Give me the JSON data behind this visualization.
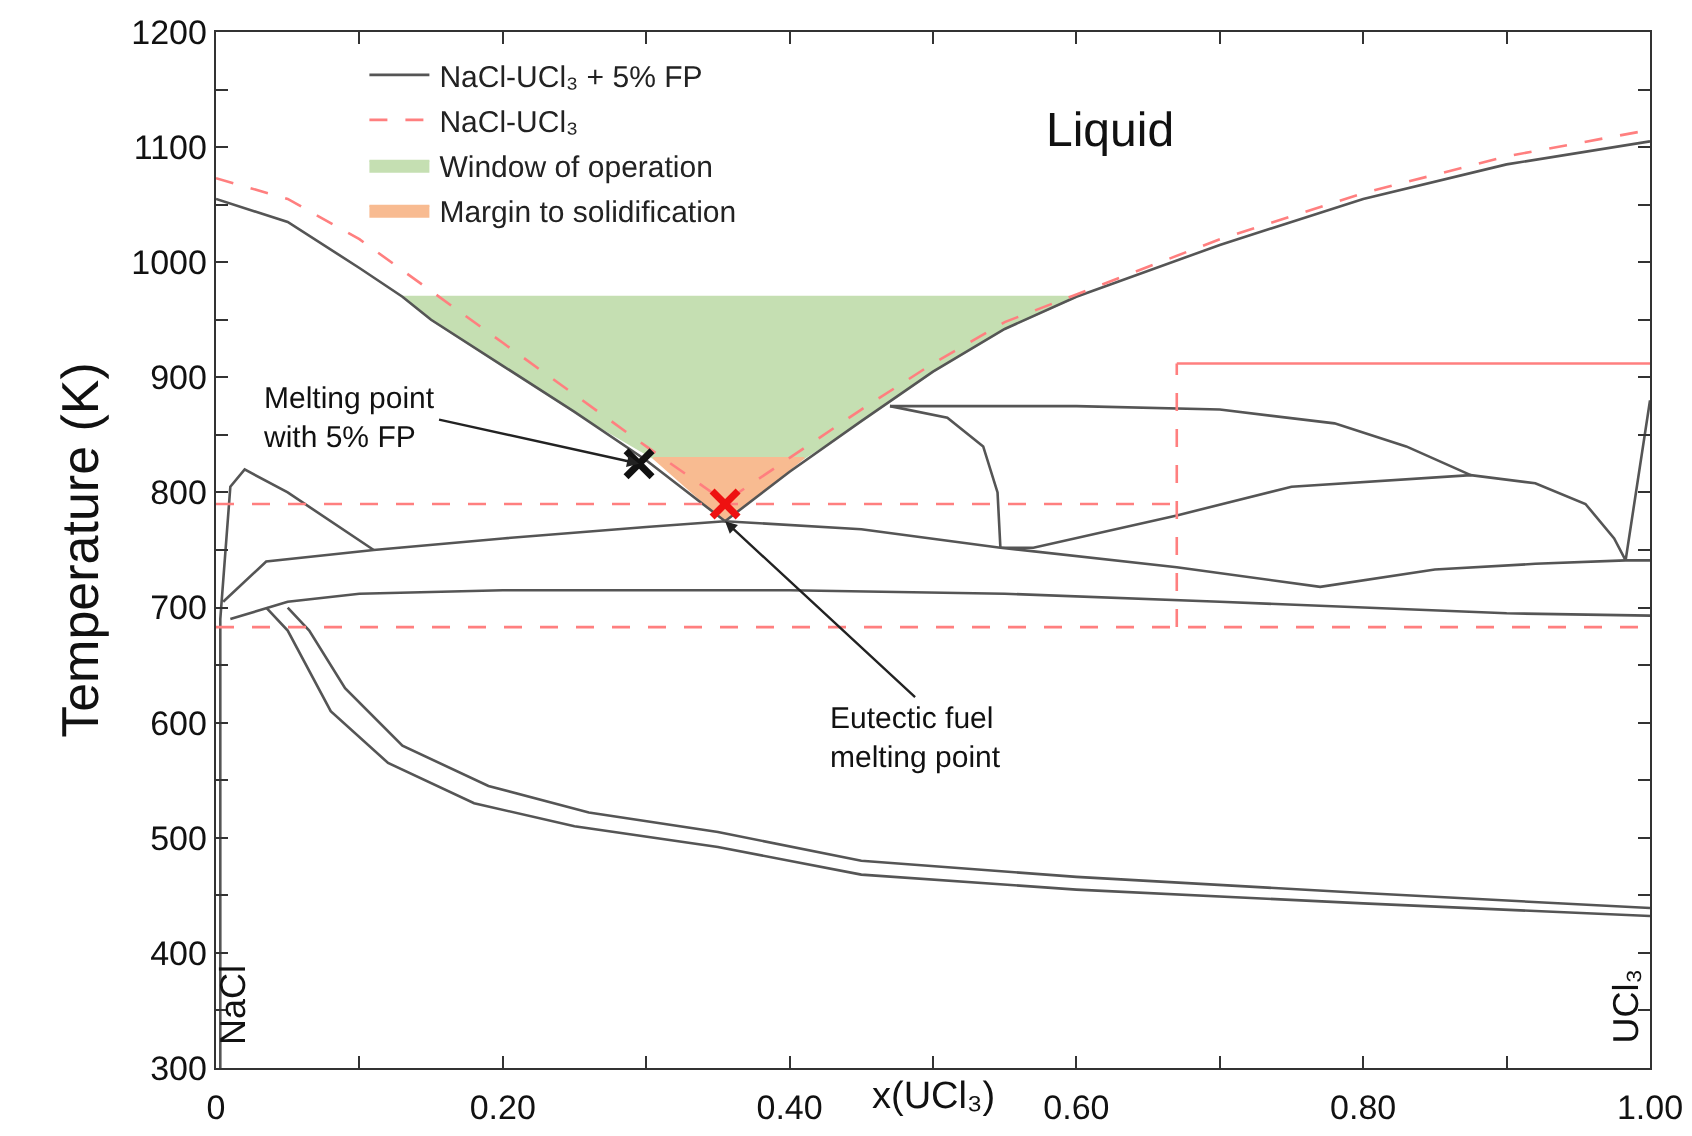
{
  "chart_data": {
    "type": "line",
    "xlabel": "x(UCl₃)",
    "ylabel": "Temperature (K)",
    "xlim": [
      0,
      1
    ],
    "ylim": [
      300,
      1200
    ],
    "xticks": [
      0,
      {
        "value": 0.1,
        "label": null
      },
      {
        "value": 0.2,
        "label": "0.20"
      },
      {
        "value": 0.3,
        "label": null
      },
      {
        "value": 0.4,
        "label": "0.40"
      },
      {
        "value": 0.5,
        "label": null
      },
      {
        "value": 0.6,
        "label": "0.60"
      },
      {
        "value": 0.7,
        "label": null
      },
      {
        "value": 0.8,
        "label": "0.80"
      },
      {
        "value": 0.9,
        "label": null
      },
      {
        "value": 1,
        "label": "1.00"
      }
    ],
    "yticks": [
      300,
      {
        "value": 350,
        "label": null
      },
      400,
      {
        "value": 450,
        "label": null
      },
      500,
      {
        "value": 550,
        "label": null
      },
      600,
      {
        "value": 650,
        "label": null
      },
      700,
      {
        "value": 750,
        "label": null
      },
      800,
      {
        "value": 850,
        "label": null
      },
      900,
      {
        "value": 950,
        "label": null
      },
      1000,
      {
        "value": 1050,
        "label": null
      },
      1100,
      {
        "value": 1150,
        "label": null
      },
      1200
    ],
    "grid": false,
    "legend": "top left",
    "series": [
      {
        "name": "NaCl-UCl₃ + 5% FP",
        "type": "line",
        "color": "#555555",
        "line_style": "solid",
        "x": [
          0,
          0.05,
          0.1,
          0.13,
          0.15,
          0.2,
          0.25,
          0.3,
          0.355,
          0.4,
          0.45,
          0.5,
          0.55,
          0.6,
          0.7,
          0.8,
          0.9,
          1.0,
          null,
          0.47,
          0.6,
          0.7,
          0.78,
          0.83,
          0.875,
          null,
          0.47,
          0.51,
          0.535,
          0.545,
          0.547,
          null,
          0.547,
          0.57,
          0.67,
          0.75,
          0.875,
          0.92,
          0.955,
          0.975,
          0.983,
          1.0,
          null,
          0.003,
          0.003,
          0.01,
          0.02,
          0.05,
          0.11,
          null,
          0.005,
          0.035,
          0.11,
          0.2,
          0.3,
          0.355,
          0.45,
          0.547,
          0.67,
          0.77,
          0.85,
          0.92,
          0.983,
          1.0,
          null,
          0.01,
          0.05,
          0.1,
          0.2,
          0.4,
          0.55,
          0.7,
          0.9,
          1.0,
          null,
          0.035,
          0.05,
          0.08,
          0.12,
          0.18,
          0.25,
          0.35,
          0.45,
          0.6,
          0.8,
          1.0,
          null,
          0.05,
          0.065,
          0.09,
          0.13,
          0.19,
          0.26,
          0.35,
          0.45,
          0.6,
          0.8,
          1.0
        ],
        "values": [
          1055,
          1035,
          995,
          970,
          950,
          910,
          870,
          828,
          775,
          818,
          862,
          905,
          942,
          970,
          1015,
          1055,
          1085,
          1105,
          null,
          875,
          875,
          872,
          860,
          840,
          815,
          null,
          875,
          865,
          840,
          800,
          752,
          null,
          752,
          752,
          780,
          805,
          815,
          808,
          790,
          760,
          741,
          880,
          null,
          300,
          690,
          805,
          820,
          800,
          750,
          null,
          705,
          740,
          750,
          760,
          770,
          775,
          768,
          752,
          735,
          718,
          733,
          738,
          741,
          741,
          null,
          690,
          705,
          712,
          715,
          715,
          712,
          705,
          695,
          693,
          null,
          700,
          680,
          610,
          565,
          530,
          510,
          492,
          468,
          455,
          443,
          432,
          null,
          700,
          680,
          630,
          580,
          545,
          522,
          505,
          480,
          466,
          452,
          439
        ]
      },
      {
        "name": "NaCl-UCl₃",
        "type": "line",
        "color": "#ff7f7f",
        "line_style": "dashed",
        "x": [
          0,
          0.05,
          0.1,
          0.15,
          0.2,
          0.25,
          0.3,
          0.355,
          0.4,
          0.45,
          0.5,
          0.55,
          0.6,
          0.7,
          0.8,
          0.9,
          1.0,
          null,
          0,
          0.67,
          null,
          0,
          1.0,
          null,
          0.67,
          0.67
        ],
        "values": [
          1073,
          1055,
          1020,
          975,
          930,
          885,
          840,
          792,
          830,
          872,
          912,
          948,
          972,
          1020,
          1060,
          1092,
          1115,
          null,
          790,
          790,
          null,
          683,
          683,
          null,
          683,
          912
        ]
      },
      {
        "name": "Window of operation",
        "type": "area",
        "color": "#c5dfb2",
        "x": [
          0.13,
          0.6,
          0.55,
          0.5,
          0.45,
          0.41,
          0.305,
          0.25,
          0.2,
          0.15,
          0.13
        ],
        "values": [
          970,
          970,
          942,
          905,
          862,
          830,
          830,
          870,
          910,
          950,
          970
        ]
      },
      {
        "name": "Margin to solidification",
        "type": "area",
        "color": "#f8bb91",
        "x": [
          0.305,
          0.41,
          0.355,
          0.305
        ],
        "values": [
          830,
          830,
          775,
          830
        ]
      },
      {
        "type": "line",
        "color": "#ff7f7f",
        "line_style": "solid",
        "x": [
          0.67,
          1.0
        ],
        "values": [
          912,
          912
        ]
      },
      {
        "type": "scatter",
        "color": "#111111",
        "marker": "cross",
        "x": [
          0.295
        ],
        "values": [
          825
        ]
      },
      {
        "type": "scatter",
        "color": "#ee1111",
        "marker": "cross",
        "x": [
          0.355
        ],
        "values": [
          790
        ]
      }
    ],
    "annotations": [
      "Liquid",
      {
        "text": "Melting point\nwith 5% FP",
        "x": 0.295,
        "y": 825
      },
      {
        "text": "Eutectic fuel\nmelting point",
        "x": 0.355,
        "y": 775
      },
      "NaCl",
      "UCl₃"
    ]
  }
}
